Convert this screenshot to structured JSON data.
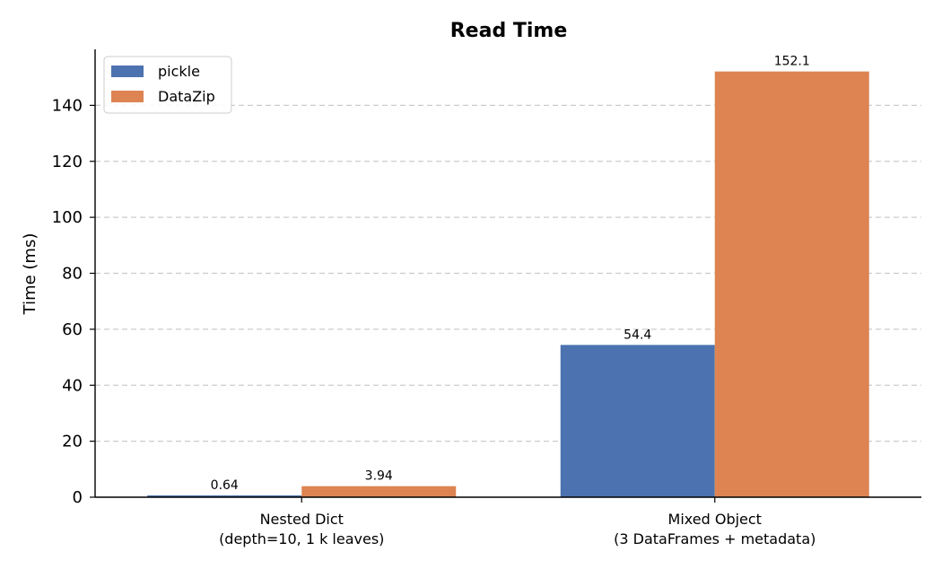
{
  "chart_data": {
    "type": "bar",
    "title": "Read Time",
    "xlabel": "",
    "ylabel": "Time (ms)",
    "categories": [
      [
        "Nested Dict",
        "(depth=10, 1 k leaves)"
      ],
      [
        "Mixed Object",
        "(3 DataFrames + metadata)"
      ]
    ],
    "series": [
      {
        "name": "pickle",
        "values": [
          0.64,
          54.4
        ],
        "labels": [
          "0.64",
          "54.4"
        ],
        "color": "#4c72b0"
      },
      {
        "name": "DataZip",
        "values": [
          3.94,
          152.1
        ],
        "labels": [
          "3.94",
          "152.1"
        ],
        "color": "#dd8452"
      }
    ],
    "ylim": [
      0,
      160
    ],
    "yticks": [
      0,
      20,
      40,
      60,
      80,
      100,
      120,
      140
    ],
    "grid": "y-dashed",
    "legend": "top-left"
  }
}
